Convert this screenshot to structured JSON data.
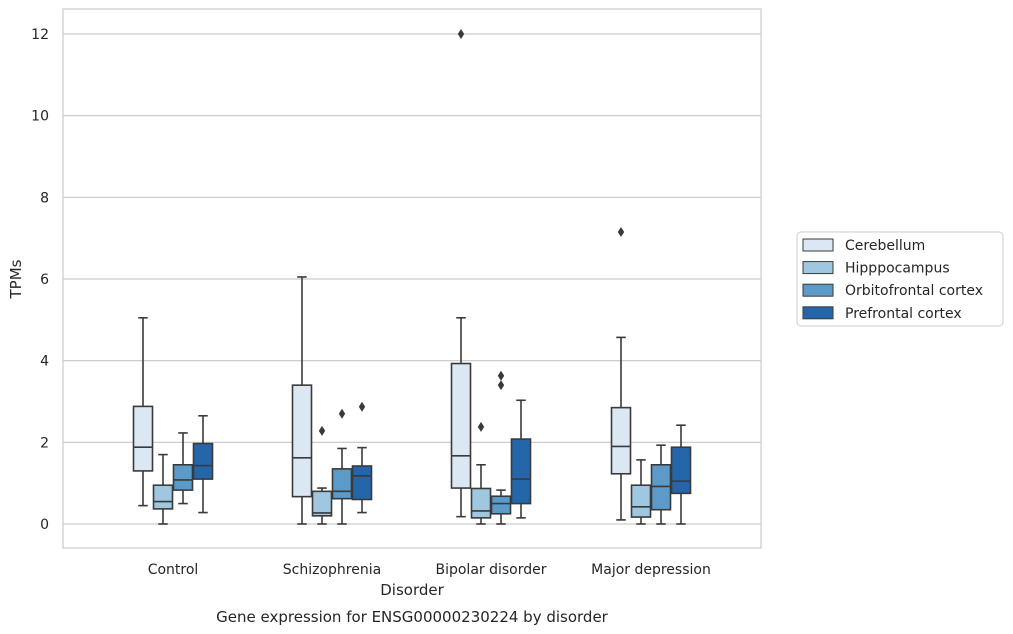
{
  "caption": "Gene expression for ENSG00000230224 by disorder",
  "chart_data": {
    "type": "box",
    "title": "",
    "xlabel": "Disorder",
    "ylabel": "TPMs",
    "ylim": [
      -0.6,
      12.6
    ],
    "yticks": [
      0,
      2,
      4,
      6,
      8,
      10,
      12
    ],
    "grid": "horizontal",
    "legend_position": "right",
    "categories": [
      "Control",
      "Schizophrenia",
      "Bipolar disorder",
      "Major depression"
    ],
    "series": [
      {
        "name": "Cerebellum",
        "color": "#dbe8f4",
        "boxes": [
          {
            "whislo": 0.45,
            "q1": 1.3,
            "med": 1.88,
            "q3": 2.88,
            "whishi": 5.05,
            "fliers": []
          },
          {
            "whislo": 0.0,
            "q1": 0.67,
            "med": 1.62,
            "q3": 3.4,
            "whishi": 6.05,
            "fliers": []
          },
          {
            "whislo": 0.18,
            "q1": 0.88,
            "med": 1.67,
            "q3": 3.93,
            "whishi": 5.05,
            "fliers": [
              12.0
            ]
          },
          {
            "whislo": 0.1,
            "q1": 1.23,
            "med": 1.9,
            "q3": 2.85,
            "whishi": 4.57,
            "fliers": [
              7.15
            ]
          }
        ]
      },
      {
        "name": "Hipppocampus",
        "color": "#9fc7e0",
        "boxes": [
          {
            "whislo": 0.0,
            "q1": 0.37,
            "med": 0.55,
            "q3": 0.95,
            "whishi": 1.7,
            "fliers": []
          },
          {
            "whislo": 0.0,
            "q1": 0.2,
            "med": 0.27,
            "q3": 0.8,
            "whishi": 0.88,
            "fliers": [
              2.28
            ]
          },
          {
            "whislo": 0.0,
            "q1": 0.15,
            "med": 0.32,
            "q3": 0.87,
            "whishi": 1.45,
            "fliers": [
              2.38
            ]
          },
          {
            "whislo": 0.0,
            "q1": 0.17,
            "med": 0.42,
            "q3": 0.95,
            "whishi": 1.57,
            "fliers": []
          }
        ]
      },
      {
        "name": "Orbitofrontal cortex",
        "color": "#5b9ac9",
        "boxes": [
          {
            "whislo": 0.5,
            "q1": 0.83,
            "med": 1.08,
            "q3": 1.45,
            "whishi": 2.23,
            "fliers": []
          },
          {
            "whislo": 0.0,
            "q1": 0.62,
            "med": 0.8,
            "q3": 1.35,
            "whishi": 1.85,
            "fliers": [
              2.7
            ]
          },
          {
            "whislo": 0.0,
            "q1": 0.25,
            "med": 0.5,
            "q3": 0.68,
            "whishi": 0.83,
            "fliers": [
              3.4,
              3.63
            ]
          },
          {
            "whislo": 0.0,
            "q1": 0.35,
            "med": 0.92,
            "q3": 1.45,
            "whishi": 1.93,
            "fliers": []
          }
        ]
      },
      {
        "name": "Prefrontal cortex",
        "color": "#2466a9",
        "boxes": [
          {
            "whislo": 0.28,
            "q1": 1.1,
            "med": 1.43,
            "q3": 1.97,
            "whishi": 2.65,
            "fliers": []
          },
          {
            "whislo": 0.28,
            "q1": 0.6,
            "med": 1.18,
            "q3": 1.42,
            "whishi": 1.87,
            "fliers": [
              2.87
            ]
          },
          {
            "whislo": 0.15,
            "q1": 0.5,
            "med": 1.1,
            "q3": 2.08,
            "whishi": 3.03,
            "fliers": []
          },
          {
            "whislo": 0.0,
            "q1": 0.75,
            "med": 1.05,
            "q3": 1.88,
            "whishi": 2.42,
            "fliers": []
          }
        ]
      }
    ]
  }
}
